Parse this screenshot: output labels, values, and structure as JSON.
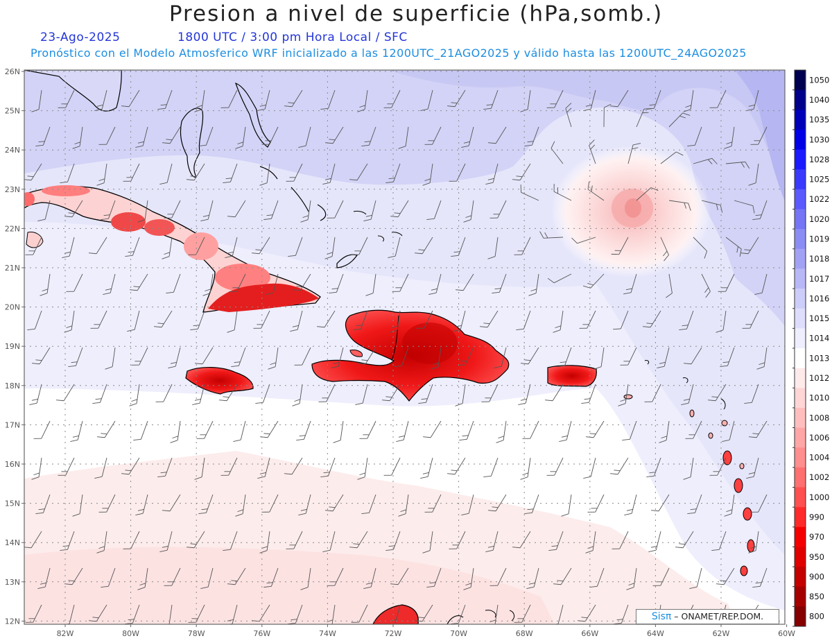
{
  "header": {
    "title": "Presion a nivel de superficie (hPa,somb.)",
    "date": "23-Ago-2025",
    "time": "1800 UTC / 3:00 pm Hora Local / SFC",
    "model": "Pronóstico con el Modelo Atmosferico WRF inicializado a las 1200UTC_21AGO2025 y válido hasta las  1200UTC_24AGO2025"
  },
  "axes": {
    "lat_labels": [
      "26N",
      "25N",
      "24N",
      "23N",
      "22N",
      "21N",
      "20N",
      "19N",
      "18N",
      "17N",
      "16N",
      "15N",
      "14N",
      "13N",
      "12N"
    ],
    "lon_labels": [
      "82W",
      "80W",
      "78W",
      "76W",
      "74W",
      "72W",
      "70W",
      "68W",
      "66W",
      "64W",
      "62W",
      "60W"
    ]
  },
  "colorbar": {
    "labels": [
      "1050",
      "1040",
      "1035",
      "1030",
      "1028",
      "1025",
      "1022",
      "1020",
      "1019",
      "1018",
      "1017",
      "1016",
      "1015",
      "1014",
      "1013",
      "1012",
      "1010",
      "1008",
      "1006",
      "1004",
      "1002",
      "1000",
      "990",
      "970",
      "950",
      "900",
      "850",
      "800"
    ],
    "colors": [
      "#000050",
      "#00008a",
      "#0000b8",
      "#0000e6",
      "#1a1aff",
      "#3a3aff",
      "#5a5aff",
      "#7575f5",
      "#8c8cf5",
      "#a2a2f5",
      "#b8b8f7",
      "#cdcdfa",
      "#dedefc",
      "#eeeeff",
      "#ffffff",
      "#ffeaea",
      "#ffd5d5",
      "#ffbebe",
      "#ffa6a6",
      "#ff8e8e",
      "#ff7070",
      "#ff5050",
      "#ff2a2a",
      "#f50000",
      "#e00000",
      "#c50000",
      "#a50000",
      "#850000"
    ]
  },
  "credit": {
    "brand": "Sisπ",
    "text": "– ONAMET/REP.DOM."
  }
}
